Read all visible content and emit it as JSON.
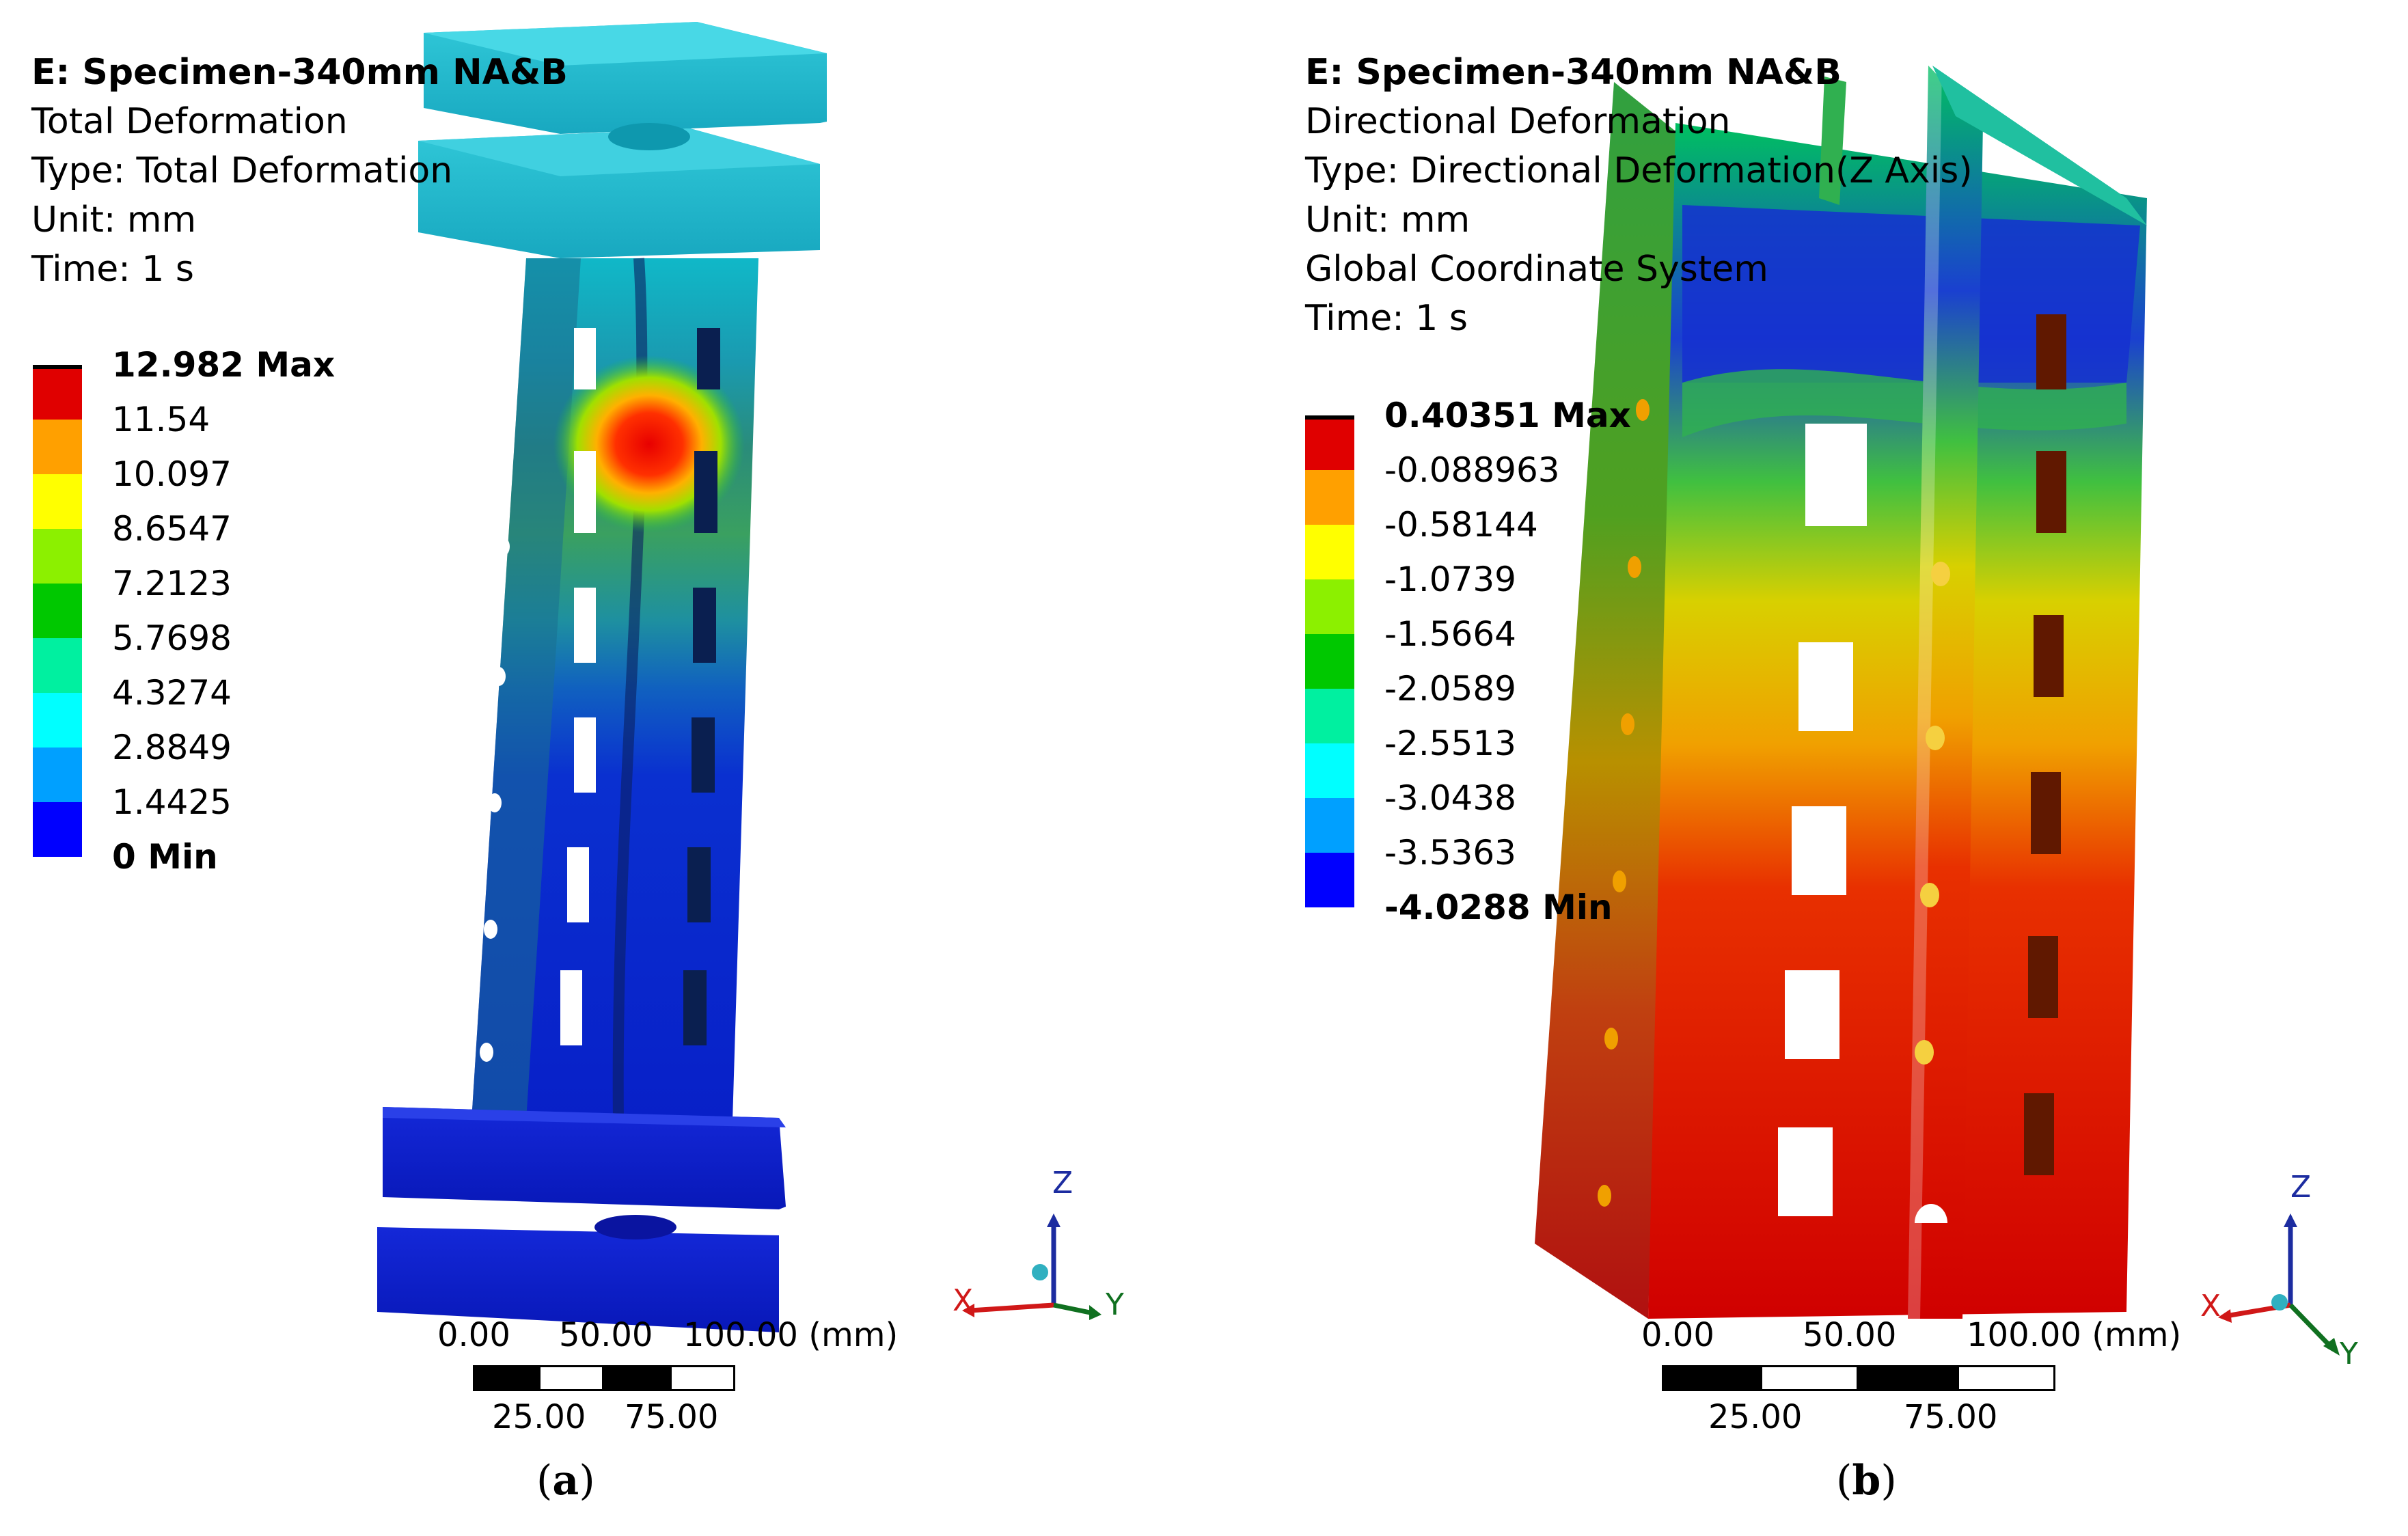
{
  "panels": [
    {
      "id": "a",
      "header": {
        "title": "E: Specimen-340mm NA&B",
        "result": "Total Deformation",
        "type": "Type: Total Deformation",
        "unit": "Unit: mm",
        "time": "Time: 1 s"
      },
      "legend": {
        "max": "12.982 Max",
        "values": [
          "11.54",
          "10.097",
          "8.6547",
          "7.2123",
          "5.7698",
          "4.3274",
          "2.8849",
          "1.4425"
        ],
        "min": "0 Min",
        "colors": [
          "#e00000",
          "#ffa000",
          "#ffff00",
          "#8cf000",
          "#00c800",
          "#00f0a0",
          "#00ffff",
          "#00a0ff",
          "#0000ff"
        ]
      },
      "scale_bar": {
        "top_ticks": [
          "0.00",
          "50.00",
          "100.00 (mm)"
        ],
        "bottom_ticks": [
          "25.00",
          "75.00"
        ]
      },
      "axes": {
        "x": "X",
        "y": "Y",
        "z": "Z"
      },
      "caption": {
        "open": "(",
        "letter": "a",
        "close": ")"
      }
    },
    {
      "id": "b",
      "header": {
        "title": "E: Specimen-340mm NA&B",
        "result": "Directional Deformation",
        "type": "Type: Directional Deformation(Z Axis)",
        "unit": "Unit: mm",
        "coord": "Global Coordinate System",
        "time": "Time: 1 s"
      },
      "legend": {
        "max": "0.40351 Max",
        "values": [
          "-0.088963",
          "-0.58144",
          "-1.0739",
          "-1.5664",
          "-2.0589",
          "-2.5513",
          "-3.0438",
          "-3.5363"
        ],
        "min": "-4.0288 Min",
        "colors": [
          "#e00000",
          "#ffa000",
          "#ffff00",
          "#8cf000",
          "#00c800",
          "#00f0a0",
          "#00ffff",
          "#00a0ff",
          "#0000ff"
        ]
      },
      "scale_bar": {
        "top_ticks": [
          "0.00",
          "50.00",
          "100.00 (mm)"
        ],
        "bottom_ticks": [
          "25.00",
          "75.00"
        ]
      },
      "axes": {
        "x": "X",
        "y": "Y",
        "z": "Z"
      },
      "caption": {
        "open": "(",
        "letter": "b",
        "close": ")"
      }
    }
  ]
}
